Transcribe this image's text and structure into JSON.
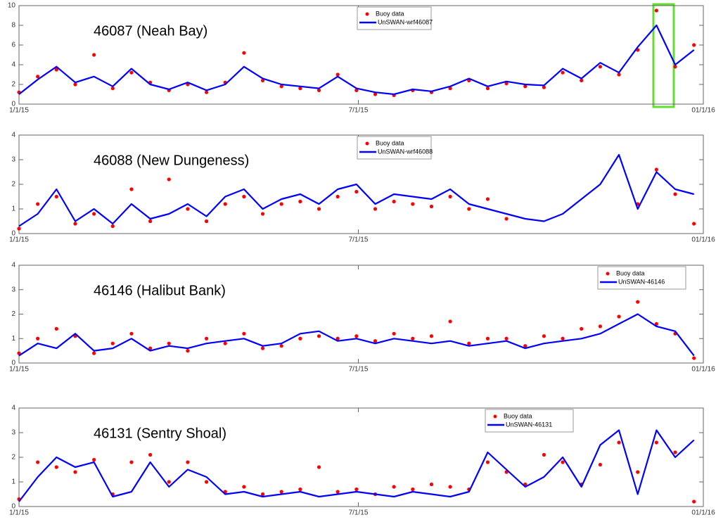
{
  "chart_data": [
    {
      "type": "line",
      "annotation": "46087 (Neah Bay)",
      "legend": "upper center",
      "x": [
        0,
        10,
        20,
        30,
        40,
        50,
        60,
        70,
        80,
        90,
        100,
        110,
        120,
        130,
        140,
        150,
        160,
        170,
        180,
        190,
        200,
        210,
        220,
        230,
        240,
        250,
        260,
        270,
        280,
        290,
        300,
        310,
        320,
        330,
        340,
        350,
        360
      ],
      "xlim": [
        0,
        365
      ],
      "xticks": [
        {
          "value": 0,
          "label": "1/1/15"
        },
        {
          "value": 181,
          "label": "7/1/15"
        },
        {
          "value": 365,
          "label": "01/1/16"
        }
      ],
      "ylim": [
        0,
        10
      ],
      "yticks": [
        0,
        2,
        4,
        6,
        8,
        10
      ],
      "series": [
        {
          "name": "Buoy data",
          "color": "#ff0000",
          "mode": "markers",
          "values": [
            1.2,
            2.8,
            3.5,
            2.0,
            5.0,
            1.6,
            3.2,
            2.2,
            1.4,
            2.0,
            1.2,
            2.2,
            5.2,
            2.4,
            1.8,
            1.6,
            1.4,
            3.0,
            1.4,
            1.0,
            0.9,
            1.4,
            1.2,
            1.6,
            2.4,
            1.6,
            2.1,
            1.8,
            1.7,
            3.2,
            2.4,
            3.8,
            3.0,
            5.5,
            9.5,
            3.8,
            6.0
          ]
        },
        {
          "name": "UnSWAN-wrf46087",
          "color": "#0000ff",
          "mode": "lines",
          "values": [
            1.0,
            2.5,
            3.8,
            2.2,
            2.8,
            1.8,
            3.6,
            2.0,
            1.5,
            2.2,
            1.4,
            2.0,
            3.8,
            2.6,
            2.0,
            1.8,
            1.6,
            2.8,
            1.6,
            1.2,
            1.0,
            1.5,
            1.3,
            1.8,
            2.6,
            1.8,
            2.3,
            2.0,
            1.9,
            3.6,
            2.6,
            4.2,
            3.2,
            5.8,
            8.0,
            4.0,
            5.5
          ]
        }
      ]
    },
    {
      "type": "line",
      "annotation": "46088 (New Dungeness)",
      "legend": "upper center",
      "x": [
        0,
        10,
        20,
        30,
        40,
        50,
        60,
        70,
        80,
        90,
        100,
        110,
        120,
        130,
        140,
        150,
        160,
        170,
        180,
        190,
        200,
        210,
        220,
        230,
        240,
        250,
        260,
        270,
        280,
        290,
        300,
        310,
        320,
        330,
        340,
        350,
        360
      ],
      "xlim": [
        0,
        365
      ],
      "xticks": [
        {
          "value": 0,
          "label": "1/1/15"
        },
        {
          "value": 181,
          "label": "7/1/15"
        },
        {
          "value": 365,
          "label": "01/1/16"
        }
      ],
      "ylim": [
        0,
        4
      ],
      "yticks": [
        0,
        1,
        2,
        3,
        4
      ],
      "series": [
        {
          "name": "Buoy data",
          "color": "#ff0000",
          "mode": "markers",
          "values": [
            0.2,
            1.2,
            1.5,
            0.4,
            0.8,
            0.3,
            1.8,
            0.5,
            2.2,
            1.0,
            0.5,
            1.2,
            1.5,
            0.8,
            1.2,
            1.3,
            1.0,
            1.5,
            1.7,
            1.0,
            1.3,
            1.2,
            1.1,
            1.5,
            1.0,
            1.4,
            0.6,
            null,
            null,
            null,
            null,
            null,
            null,
            1.2,
            2.6,
            1.6,
            0.4
          ]
        },
        {
          "name": "UnSWAN-wrf46088",
          "color": "#0000ff",
          "mode": "lines",
          "values": [
            0.3,
            0.8,
            1.8,
            0.5,
            1.0,
            0.4,
            1.2,
            0.6,
            0.8,
            1.2,
            0.7,
            1.5,
            1.8,
            1.0,
            1.4,
            1.6,
            1.2,
            1.8,
            2.0,
            1.2,
            1.6,
            1.5,
            1.4,
            1.8,
            1.2,
            1.0,
            0.8,
            0.6,
            0.5,
            0.8,
            1.4,
            2.0,
            3.2,
            1.0,
            2.5,
            1.8,
            1.6
          ]
        }
      ]
    },
    {
      "type": "line",
      "annotation": "46146 (Halibut Bank)",
      "legend": "upper right",
      "x": [
        0,
        10,
        20,
        30,
        40,
        50,
        60,
        70,
        80,
        90,
        100,
        110,
        120,
        130,
        140,
        150,
        160,
        170,
        180,
        190,
        200,
        210,
        220,
        230,
        240,
        250,
        260,
        270,
        280,
        290,
        300,
        310,
        320,
        330,
        340,
        350,
        360
      ],
      "xlim": [
        0,
        365
      ],
      "xticks": [
        {
          "value": 0,
          "label": "1/1/15"
        },
        {
          "value": 181,
          "label": "7/1/15"
        },
        {
          "value": 365,
          "label": "01/1/16"
        }
      ],
      "ylim": [
        0,
        4
      ],
      "yticks": [
        0,
        1,
        2,
        3,
        4
      ],
      "series": [
        {
          "name": "Buoy data",
          "color": "#ff0000",
          "mode": "markers",
          "values": [
            0.4,
            1.0,
            1.4,
            1.1,
            0.4,
            0.8,
            1.2,
            0.6,
            0.8,
            0.5,
            1.0,
            0.8,
            1.2,
            0.6,
            0.7,
            1.0,
            1.1,
            1.0,
            1.1,
            0.9,
            1.2,
            1.0,
            1.1,
            1.7,
            0.8,
            1.0,
            1.0,
            0.7,
            1.1,
            1.0,
            1.4,
            1.5,
            1.9,
            2.5,
            1.6,
            1.2,
            0.2
          ]
        },
        {
          "name": "UnSWAN-46146",
          "color": "#0000ff",
          "mode": "lines",
          "values": [
            0.3,
            0.8,
            0.6,
            1.2,
            0.5,
            0.6,
            1.0,
            0.5,
            0.7,
            0.6,
            0.8,
            0.9,
            1.0,
            0.7,
            0.8,
            1.2,
            1.3,
            0.9,
            1.0,
            0.8,
            1.0,
            0.9,
            0.8,
            0.9,
            0.7,
            0.8,
            0.9,
            0.6,
            0.8,
            0.9,
            1.0,
            1.2,
            1.6,
            2.0,
            1.5,
            1.3,
            0.3
          ]
        }
      ]
    },
    {
      "type": "line",
      "annotation": "46131 (Sentry Shoal)",
      "legend": "upper right",
      "x": [
        0,
        10,
        20,
        30,
        40,
        50,
        60,
        70,
        80,
        90,
        100,
        110,
        120,
        130,
        140,
        150,
        160,
        170,
        180,
        190,
        200,
        210,
        220,
        230,
        240,
        250,
        260,
        270,
        280,
        290,
        300,
        310,
        320,
        330,
        340,
        350,
        360
      ],
      "xlim": [
        0,
        365
      ],
      "xticks": [
        {
          "value": 0,
          "label": "1/1/15"
        },
        {
          "value": 181,
          "label": "7/1/15"
        },
        {
          "value": 365,
          "label": "01/1/16"
        }
      ],
      "ylim": [
        0,
        4
      ],
      "yticks": [
        0,
        1,
        2,
        3,
        4
      ],
      "series": [
        {
          "name": "Buoy data",
          "color": "#ff0000",
          "mode": "markers",
          "values": [
            0.3,
            1.8,
            1.6,
            1.4,
            1.9,
            0.5,
            1.8,
            2.1,
            1.0,
            1.8,
            1.0,
            0.6,
            0.8,
            0.5,
            0.6,
            0.7,
            1.6,
            0.6,
            0.7,
            0.5,
            0.8,
            0.7,
            0.9,
            0.8,
            0.7,
            1.8,
            1.4,
            0.9,
            2.1,
            1.8,
            0.9,
            1.7,
            2.6,
            1.4,
            2.6,
            2.2,
            0.2
          ]
        },
        {
          "name": "UnSWAN-46131",
          "color": "#0000ff",
          "mode": "lines",
          "values": [
            0.2,
            1.2,
            2.0,
            1.6,
            1.8,
            0.4,
            0.6,
            1.8,
            0.8,
            1.5,
            1.2,
            0.5,
            0.6,
            0.4,
            0.5,
            0.6,
            0.4,
            0.5,
            0.6,
            0.5,
            0.4,
            0.6,
            0.5,
            0.4,
            0.6,
            2.2,
            1.5,
            0.8,
            1.2,
            2.0,
            0.8,
            2.5,
            3.1,
            0.5,
            3.1,
            2.0,
            2.7
          ]
        }
      ]
    }
  ]
}
